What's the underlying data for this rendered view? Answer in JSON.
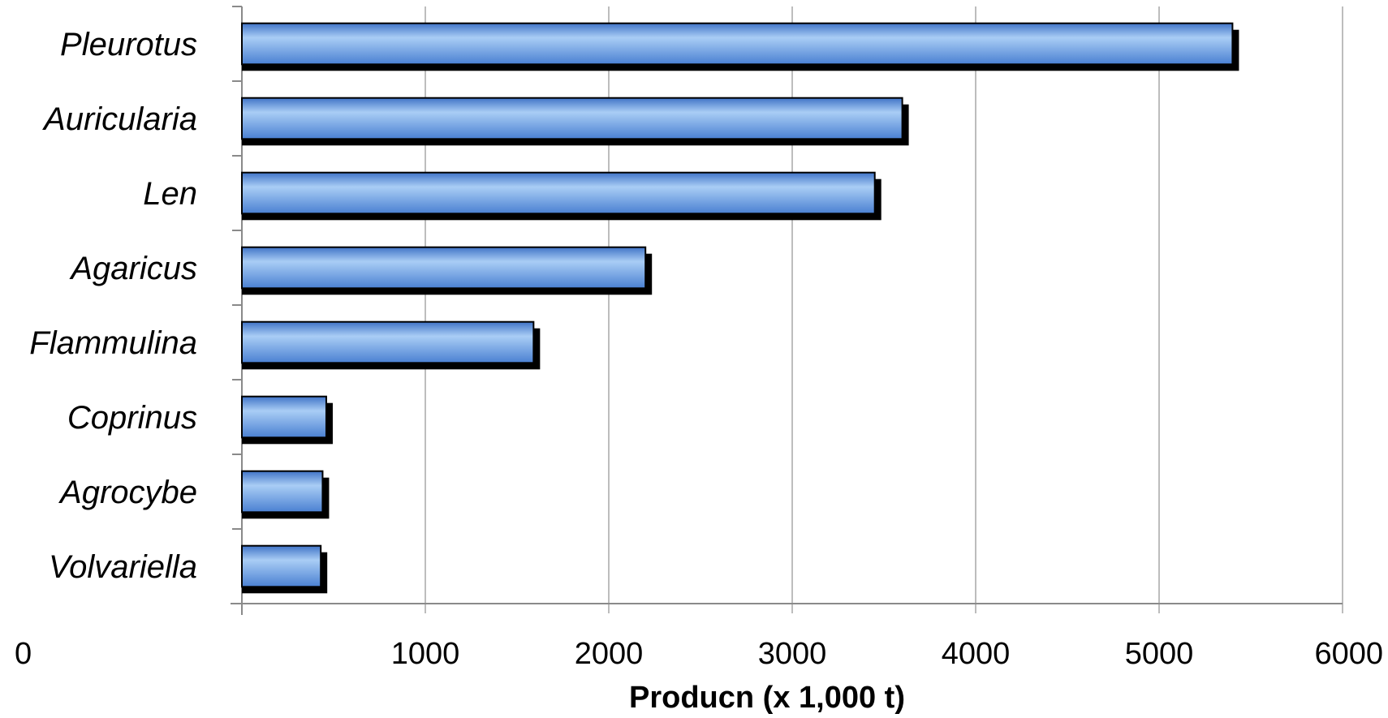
{
  "chart_data": {
    "type": "bar",
    "orientation": "horizontal",
    "categories": [
      "Pleurotus",
      "Auricularia",
      "Len",
      "Agaricus",
      "Flammulina",
      "Coprinus",
      "Agrocybe",
      "Volvariella"
    ],
    "values": [
      5400,
      3600,
      3450,
      2200,
      1590,
      460,
      440,
      430
    ],
    "xlabel": "Producn (x 1,000 t)",
    "ylabel": "",
    "title": "",
    "xlim": [
      0,
      6000
    ],
    "xticks": [
      0,
      1000,
      2000,
      3000,
      4000,
      5000,
      6000
    ],
    "xtick_labels": [
      "0",
      "1000",
      "2000",
      "3000",
      "4000",
      "5000",
      "6000"
    ],
    "grid": "vertical",
    "legend": "none",
    "bar_color": "#5b8fd9",
    "bar_highlight_color": "#a9cdf5",
    "bar_shadow_color": "#000000"
  }
}
